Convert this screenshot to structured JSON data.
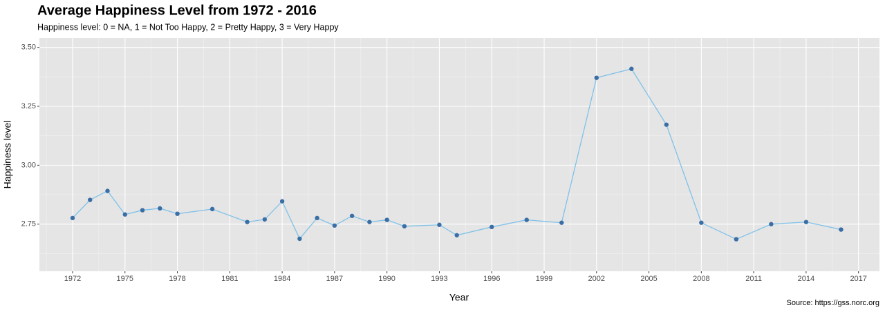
{
  "chart_data": {
    "type": "line",
    "title": "Average Happiness Level from 1972 - 2016",
    "subtitle": "Happiness level: 0 = NA, 1 = Not Too Happy, 2 = Pretty Happy, 3 = Very Happy",
    "x_label": "Year",
    "y_label": "Happiness level",
    "caption": "Source: https://gss.norc.org",
    "x": [
      1972,
      1973,
      1974,
      1975,
      1976,
      1977,
      1978,
      1980,
      1982,
      1983,
      1984,
      1985,
      1986,
      1987,
      1988,
      1989,
      1990,
      1991,
      1993,
      1994,
      1996,
      1998,
      2000,
      2002,
      2004,
      2006,
      2008,
      2010,
      2012,
      2014,
      2016
    ],
    "values": [
      2.776,
      2.853,
      2.891,
      2.791,
      2.809,
      2.817,
      2.794,
      2.814,
      2.759,
      2.77,
      2.847,
      2.688,
      2.776,
      2.744,
      2.785,
      2.759,
      2.768,
      2.741,
      2.747,
      2.703,
      2.738,
      2.768,
      2.756,
      3.371,
      3.409,
      3.172,
      2.756,
      2.686,
      2.75,
      2.759,
      2.727
    ],
    "color": "#7fc1e8",
    "point_color": "#3a6ea5",
    "xlim": [
      1970.1,
      2018.2
    ],
    "xticks": [
      1972,
      1975,
      1978,
      1981,
      1984,
      1987,
      1990,
      1993,
      1996,
      1999,
      2002,
      2005,
      2008,
      2011,
      2014,
      2017
    ],
    "ylim": [
      2.55,
      3.54
    ],
    "yticks": [
      {
        "value": 2.75,
        "label": "2.75"
      },
      {
        "value": 3,
        "label": "3.00"
      },
      3.25,
      {
        "value": 3.5,
        "label": "3.50"
      }
    ],
    "grid": true
  }
}
